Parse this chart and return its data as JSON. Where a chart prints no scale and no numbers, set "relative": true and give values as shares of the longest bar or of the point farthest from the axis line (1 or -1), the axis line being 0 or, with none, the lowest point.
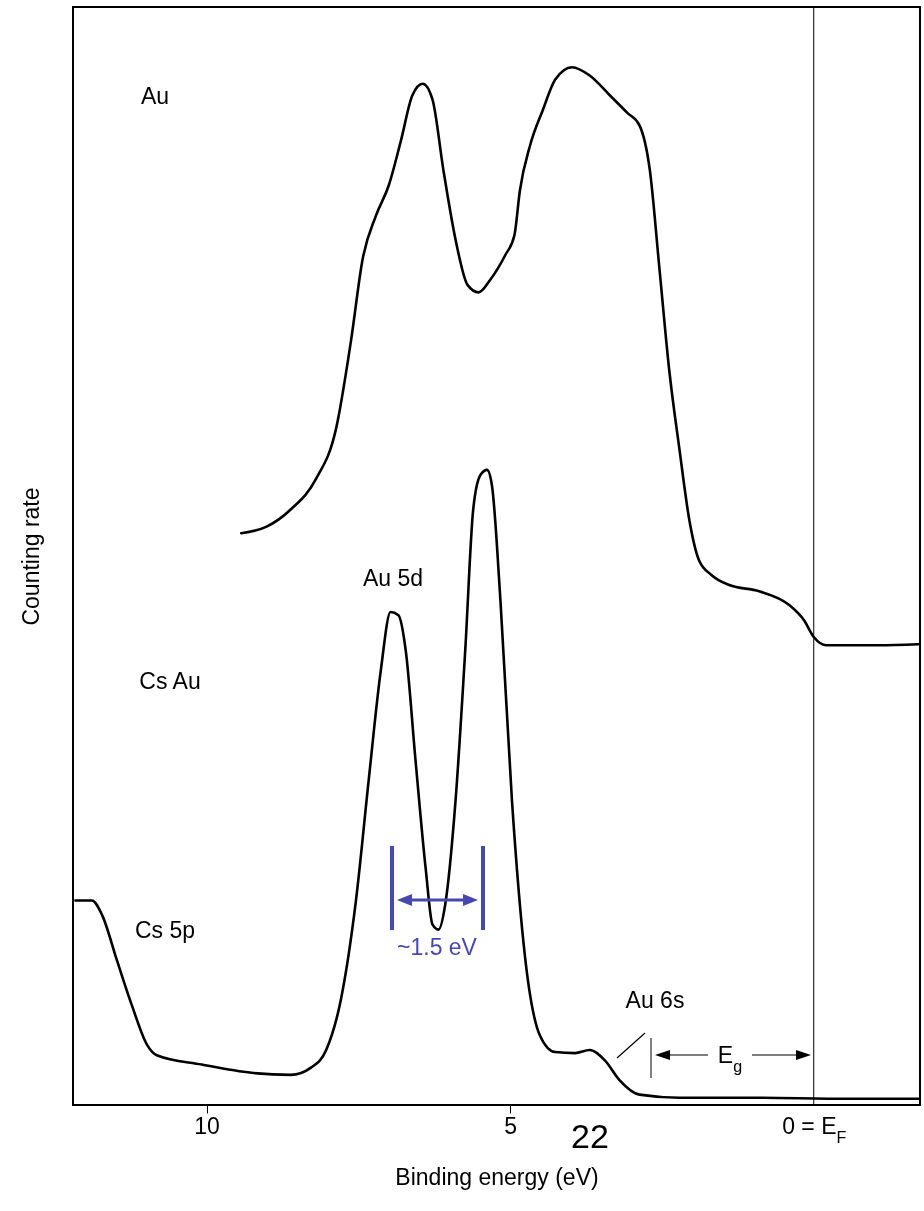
{
  "chart_data": {
    "type": "line",
    "relative": true,
    "xlabel": "Binding energy (eV)",
    "ylabel": "Counting rate",
    "xlim": [
      12.2,
      -1.75
    ],
    "xticks": [
      10,
      5,
      {
        "value": 0,
        "label": "0 = E$_{F}$"
      }
    ],
    "grid": false,
    "line_style": "solid",
    "marker": "none",
    "series": [
      {
        "color": "#000000",
        "x": [
          9.43,
          9.02,
          8.61,
          8.2,
          7.87,
          7.62,
          7.43,
          7.21,
          7.0,
          6.8,
          6.61,
          6.44,
          6.28,
          6.1,
          5.9,
          5.7,
          5.52,
          5.33,
          5.08,
          4.93,
          4.84,
          4.67,
          4.46,
          4.26,
          3.98,
          3.69,
          3.36,
          3.07,
          2.87,
          2.7,
          2.54,
          2.38,
          2.21,
          2.05,
          1.89,
          1.69,
          1.39,
          0.9,
          0.41,
          0.16,
          0,
          -0.21,
          -0.57,
          -1.07,
          -1.72
        ],
        "values": [
          0.551,
          0.557,
          0.574,
          0.603,
          0.651,
          0.737,
          0.815,
          0.857,
          0.886,
          0.929,
          0.973,
          0.984,
          0.969,
          0.901,
          0.834,
          0.79,
          0.783,
          0.795,
          0.819,
          0.838,
          0.881,
          0.925,
          0.959,
          0.988,
          1.0,
          0.992,
          0.973,
          0.956,
          0.944,
          0.901,
          0.805,
          0.708,
          0.631,
          0.564,
          0.525,
          0.511,
          0.501,
          0.495,
          0.482,
          0.467,
          0.451,
          0.443,
          0.443,
          0.443,
          0.444
        ]
      },
      {
        "color": "#000000",
        "x": [
          12.16,
          11.89,
          11.72,
          11.48,
          11.23,
          10.98,
          10.82,
          10.08,
          9.26,
          8.61,
          8.28,
          8.03,
          7.79,
          7.54,
          7.33,
          7.13,
          6.97,
          6.84,
          6.72,
          6.56,
          6.39,
          6.28,
          6.18,
          6.07,
          5.9,
          5.74,
          5.61,
          5.49,
          5.38,
          5.3,
          5.16,
          4.97,
          4.75,
          4.51,
          4.26,
          3.93,
          3.69,
          3.44,
          3.2,
          2.87,
          2.21,
          1.07,
          -0.57,
          -1.72
        ],
        "values": [
          0.197,
          0.197,
          0.183,
          0.14,
          0.096,
          0.058,
          0.048,
          0.039,
          0.031,
          0.029,
          0.036,
          0.053,
          0.101,
          0.197,
          0.313,
          0.419,
          0.475,
          0.472,
          0.438,
          0.333,
          0.227,
          0.174,
          0.169,
          0.193,
          0.293,
          0.438,
          0.573,
          0.607,
          0.612,
          0.597,
          0.486,
          0.293,
          0.14,
          0.067,
          0.051,
          0.05,
          0.053,
          0.043,
          0.024,
          0.01,
          0.007,
          0.007,
          0.006,
          0.006
        ]
      }
    ],
    "ref_lines": [
      {
        "axis": "x",
        "value": 0,
        "color": "#000000"
      }
    ],
    "annotations": [
      "Au",
      "Cs Au",
      "Au 5d",
      "Cs 5p",
      "~1.5 eV",
      "Au 6s",
      "E$_{g}$",
      "22"
    ]
  }
}
